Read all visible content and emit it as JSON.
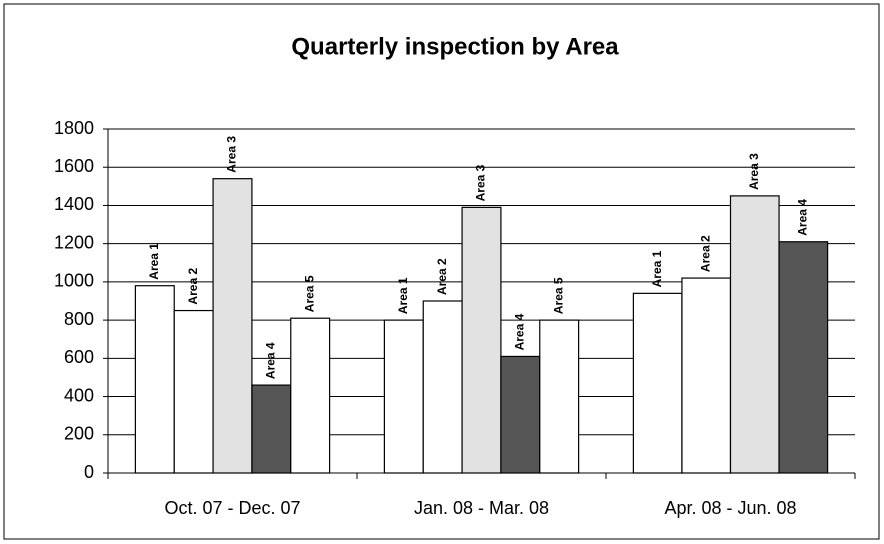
{
  "chart_data": {
    "type": "bar",
    "title": "Quarterly inspection by Area",
    "categories": [
      "Oct. 07 - Dec. 07",
      "Jan. 08 - Mar. 08",
      "Apr. 08 - Jun. 08"
    ],
    "series": [
      {
        "name": "Area 1",
        "color": "#ffffff",
        "values": [
          980,
          800,
          940
        ]
      },
      {
        "name": "Area 2",
        "color": "#ffffff",
        "values": [
          850,
          900,
          1020
        ]
      },
      {
        "name": "Area 3",
        "color": "#e2e2e2",
        "values": [
          1540,
          1390,
          1450
        ]
      },
      {
        "name": "Area 4",
        "color": "#555555",
        "values": [
          460,
          610,
          1210
        ]
      },
      {
        "name": "Area 5",
        "color": "#ffffff",
        "values": [
          810,
          800,
          null
        ]
      }
    ],
    "ylim": [
      0,
      1800
    ],
    "yticks": [
      0,
      200,
      400,
      600,
      800,
      1000,
      1200,
      1400,
      1600,
      1800
    ],
    "grid": true
  }
}
